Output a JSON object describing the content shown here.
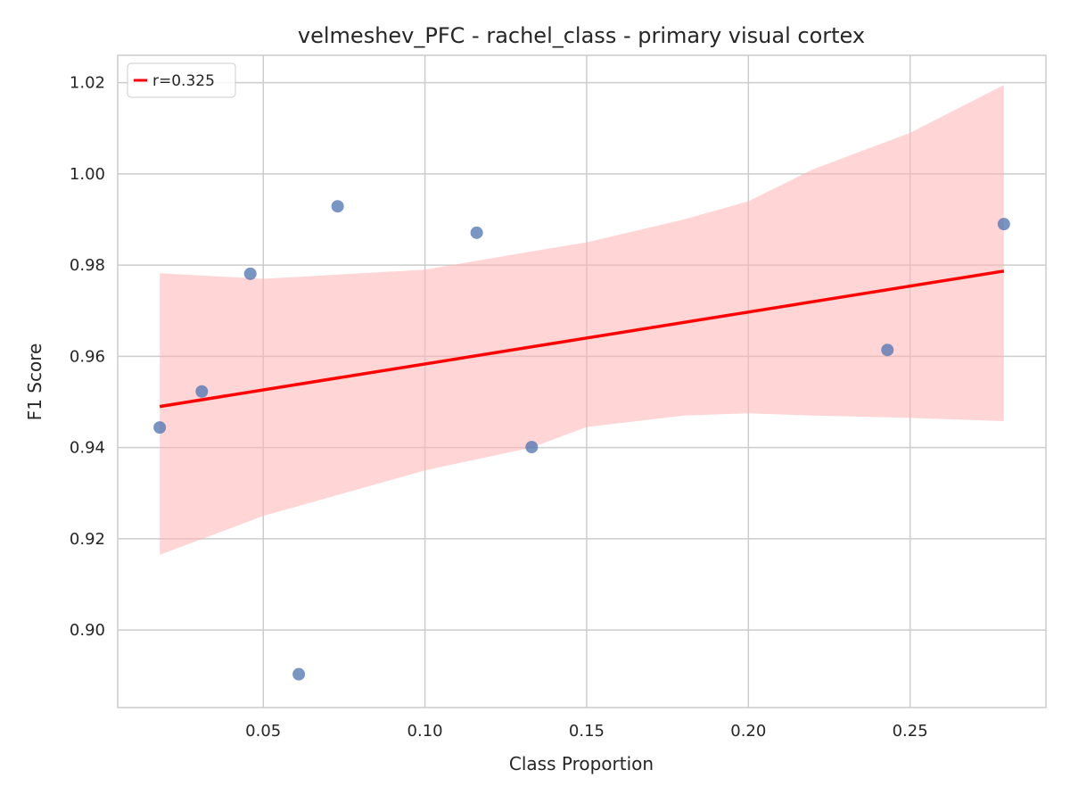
{
  "chart_data": {
    "type": "scatter",
    "title": "velmeshev_PFC - rachel_class - primary visual cortex",
    "xlabel": "Class Proportion",
    "ylabel": "F1 Score",
    "xlim": [
      0.005,
      0.292
    ],
    "ylim": [
      0.883,
      1.026
    ],
    "xticks": [
      0.05,
      0.1,
      0.15,
      0.2,
      0.25
    ],
    "xtick_labels": [
      "0.05",
      "0.10",
      "0.15",
      "0.20",
      "0.25"
    ],
    "yticks": [
      0.9,
      0.92,
      0.94,
      0.96,
      0.98,
      1.0,
      1.02
    ],
    "ytick_labels": [
      "0.90",
      "0.92",
      "0.94",
      "0.96",
      "0.98",
      "1.00",
      "1.02"
    ],
    "grid": true,
    "legend": {
      "position": "top-left",
      "entries": [
        "r=0.325"
      ]
    },
    "points": [
      {
        "x": 0.018,
        "y": 0.9444
      },
      {
        "x": 0.031,
        "y": 0.9523
      },
      {
        "x": 0.046,
        "y": 0.9781
      },
      {
        "x": 0.061,
        "y": 0.8903
      },
      {
        "x": 0.073,
        "y": 0.9929
      },
      {
        "x": 0.116,
        "y": 0.9871
      },
      {
        "x": 0.133,
        "y": 0.9401
      },
      {
        "x": 0.243,
        "y": 0.9614
      },
      {
        "x": 0.279,
        "y": 0.989
      }
    ],
    "regression": {
      "label": "r=0.325",
      "x": [
        0.018,
        0.279
      ],
      "y": [
        0.949,
        0.9787
      ]
    },
    "confidence_band": {
      "x": [
        0.018,
        0.05,
        0.1,
        0.133,
        0.15,
        0.18,
        0.2,
        0.22,
        0.25,
        0.279
      ],
      "lower": [
        0.9165,
        0.925,
        0.935,
        0.94,
        0.9445,
        0.947,
        0.9475,
        0.947,
        0.9465,
        0.9458
      ],
      "upper": [
        0.9782,
        0.977,
        0.979,
        0.983,
        0.985,
        0.99,
        0.994,
        1.001,
        1.009,
        1.0195
      ]
    },
    "colors": {
      "points": "#4c72b0",
      "regression": "#ff0000",
      "band": "#ffb3b3",
      "grid": "#cccccc",
      "axes": "#cccccc"
    }
  }
}
